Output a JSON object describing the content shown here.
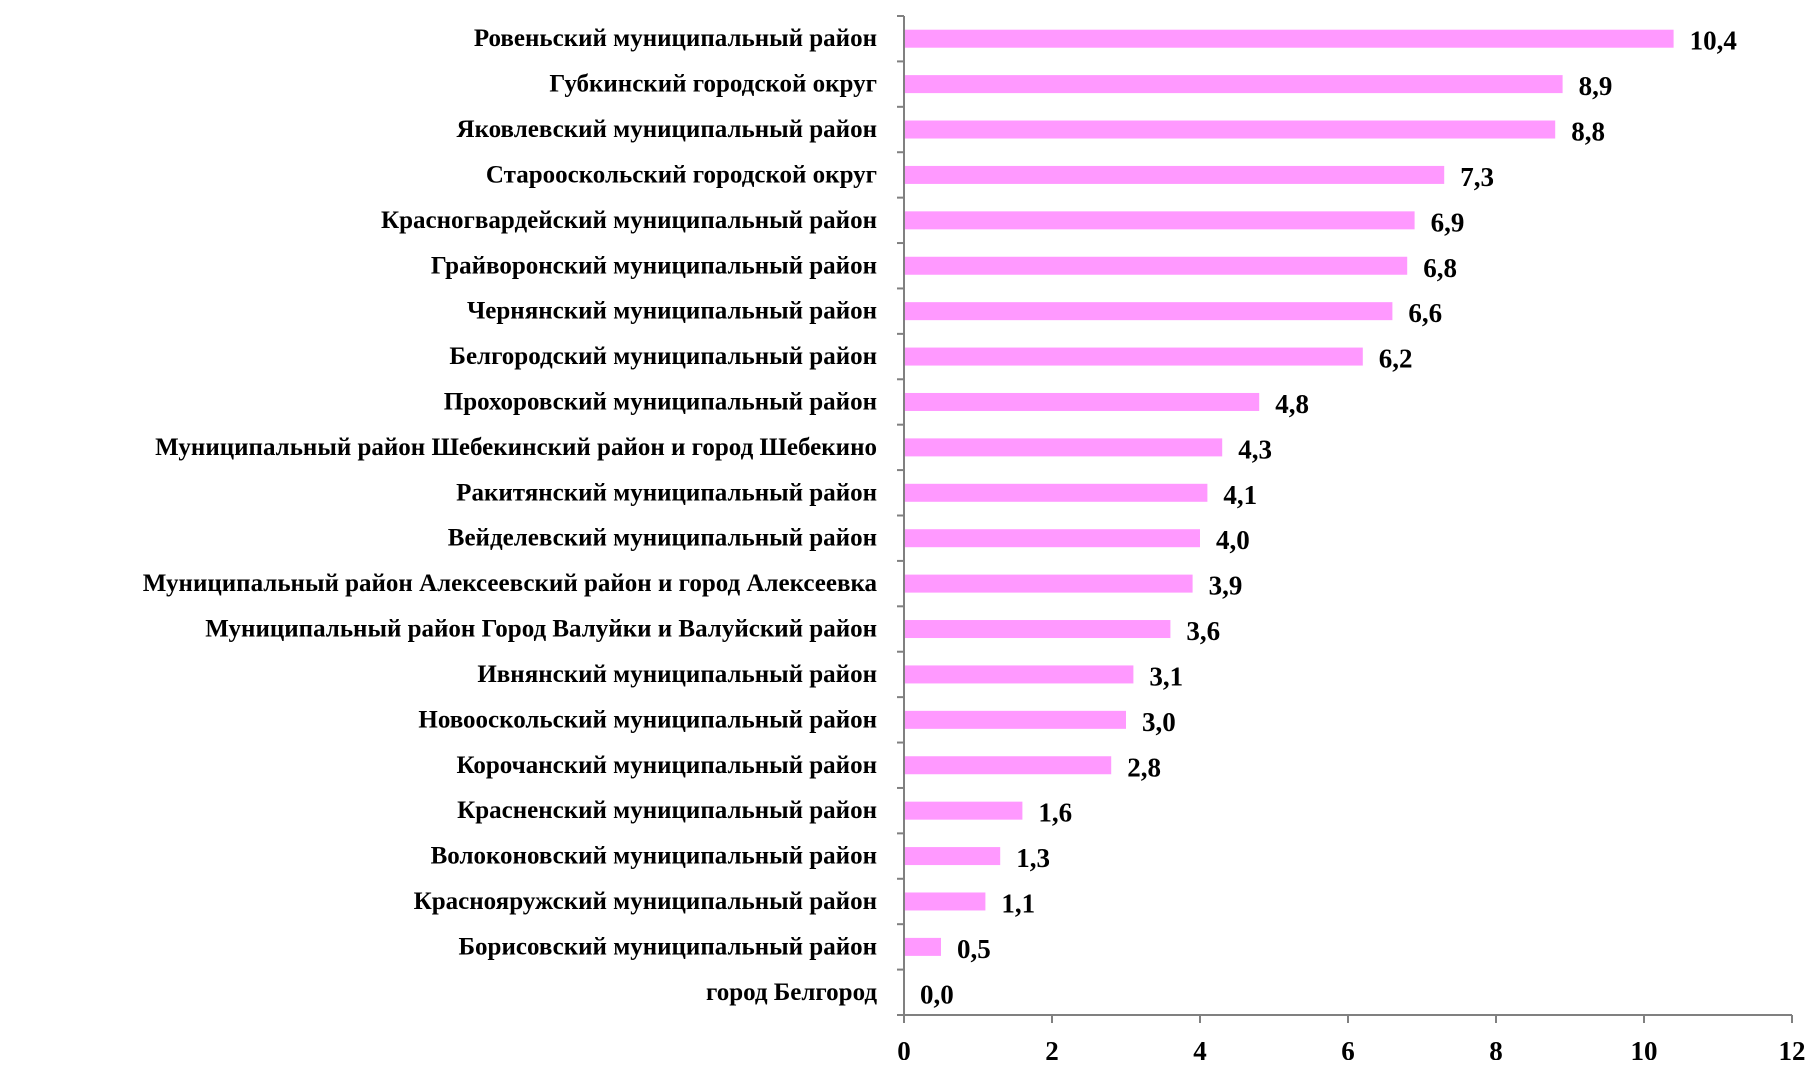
{
  "chart_data": {
    "type": "bar",
    "orientation": "horizontal",
    "title": "",
    "xlabel": "",
    "ylabel": "",
    "xlim": [
      0,
      12
    ],
    "x_ticks": [
      0,
      2,
      4,
      6,
      8,
      10,
      12
    ],
    "x_tick_labels": [
      "0",
      "2",
      "4",
      "6",
      "8",
      "10",
      "12"
    ],
    "grid": false,
    "legend": "none",
    "bar_color": "#FF99FF",
    "categories": [
      "Ровеньский муниципальный район",
      "Губкинский городской округ",
      "Яковлевский муниципальный район",
      "Старооскольский городской округ",
      "Красногвардейский муниципальный район",
      "Грайворонский муниципальный район",
      "Чернянский муниципальный район",
      "Белгородский муниципальный район",
      "Прохоровский муниципальный район",
      "Муниципальный район Шебекинский район и город Шебекино",
      "Ракитянский муниципальный район",
      "Вейделевский муниципальный район",
      "Муниципальный район Алексеевский район и город Алексеевка",
      "Муниципальный район Город Валуйки и Валуйский район",
      "Ивнянский муниципальный район",
      "Новооскольский муниципальный район",
      "Корочанский муниципальный район",
      "Красненский муниципальный район",
      "Волоконовский муниципальный район",
      "Краснояружский муниципальный район",
      "Борисовский муниципальный район",
      "город Белгород"
    ],
    "values": [
      10.4,
      8.9,
      8.8,
      7.3,
      6.9,
      6.8,
      6.6,
      6.2,
      4.8,
      4.3,
      4.1,
      4.0,
      3.9,
      3.6,
      3.1,
      3.0,
      2.8,
      1.6,
      1.3,
      1.1,
      0.5,
      0.0
    ],
    "value_labels": [
      "10,4",
      "8,9",
      "8,8",
      "7,3",
      "6,9",
      "6,8",
      "6,6",
      "6,2",
      "4,8",
      "4,3",
      "4,1",
      "4,0",
      "3,9",
      "3,6",
      "3,1",
      "3,0",
      "2,8",
      "1,6",
      "1,3",
      "1,1",
      "0,5",
      "0,0"
    ]
  }
}
